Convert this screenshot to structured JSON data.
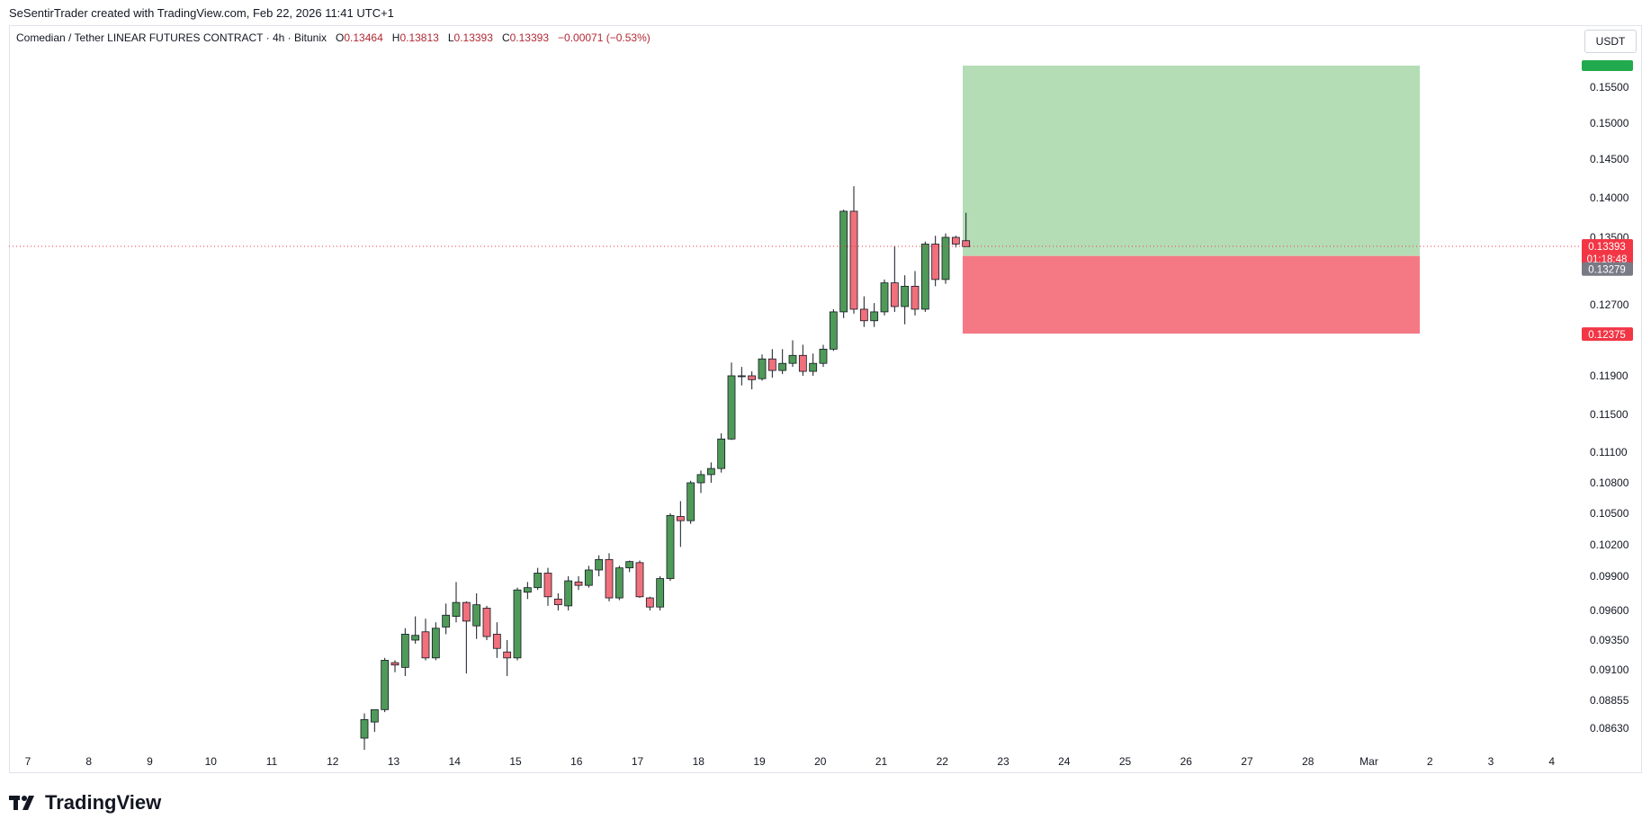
{
  "attribution": "SeSentirTrader created with TradingView.com, Feb 22, 2026 11:41 UTC+1",
  "legend": {
    "symbol": "Comedian / Tether LINEAR FUTURES CONTRACT · 4h · Bitunix",
    "o_label": "O",
    "o": "0.13464",
    "h_label": "H",
    "h": "0.13813",
    "l_label": "L",
    "l": "0.13393",
    "c_label": "C",
    "c": "0.13393",
    "change": "−0.00071 (−0.53%)"
  },
  "currency": "USDT",
  "brand": "TradingView",
  "colors": {
    "up": "#4f9a58",
    "down": "#f0707c",
    "target_zone": "#b4ddb6",
    "stop_zone": "#f57985",
    "badge_red": "#f23645",
    "badge_grey": "#787b86",
    "badge_green": "#22ab4e"
  },
  "chart_data": {
    "type": "candlestick",
    "interval": "4h",
    "x_ticks": [
      "7",
      "8",
      "9",
      "10",
      "11",
      "12",
      "13",
      "14",
      "15",
      "16",
      "17",
      "18",
      "19",
      "20",
      "21",
      "22",
      "23",
      "24",
      "25",
      "26",
      "27",
      "28",
      "Mar",
      "2",
      "3",
      "4"
    ],
    "y_ticks": [
      "0.15500",
      "0.15000",
      "0.14500",
      "0.14000",
      "0.13500",
      "0.12700",
      "0.11900",
      "0.11500",
      "0.11100",
      "0.10800",
      "0.10500",
      "0.10200",
      "0.09900",
      "0.09600",
      "0.09350",
      "0.09100",
      "0.08855",
      "0.08630"
    ],
    "y_tick_values": [
      0.155,
      0.15,
      0.145,
      0.14,
      0.135,
      0.127,
      0.119,
      0.115,
      0.111,
      0.108,
      0.105,
      0.102,
      0.099,
      0.096,
      0.0935,
      0.091,
      0.08855,
      0.0863
    ],
    "price_labels": {
      "last": "0.13393",
      "countdown": "01:18:48",
      "entry": "0.13279",
      "stop": "0.12375",
      "target": "0.15800"
    },
    "position": {
      "entry": 0.13279,
      "stop": 0.12375,
      "target": 0.158
    },
    "candles": [
      {
        "o": 0.0855,
        "h": 0.0875,
        "l": 0.084,
        "c": 0.087
      },
      {
        "o": 0.0868,
        "h": 0.0878,
        "l": 0.086,
        "c": 0.0878
      },
      {
        "o": 0.0878,
        "h": 0.092,
        "l": 0.0876,
        "c": 0.0918
      },
      {
        "o": 0.0916,
        "h": 0.0918,
        "l": 0.0908,
        "c": 0.0914
      },
      {
        "o": 0.0912,
        "h": 0.0945,
        "l": 0.0905,
        "c": 0.094
      },
      {
        "o": 0.0935,
        "h": 0.0955,
        "l": 0.0932,
        "c": 0.0939
      },
      {
        "o": 0.0942,
        "h": 0.0953,
        "l": 0.0918,
        "c": 0.092
      },
      {
        "o": 0.092,
        "h": 0.095,
        "l": 0.0918,
        "c": 0.0945
      },
      {
        "o": 0.0946,
        "h": 0.0966,
        "l": 0.094,
        "c": 0.0956
      },
      {
        "o": 0.0955,
        "h": 0.0985,
        "l": 0.095,
        "c": 0.0967
      },
      {
        "o": 0.0967,
        "h": 0.0968,
        "l": 0.0907,
        "c": 0.0951
      },
      {
        "o": 0.0947,
        "h": 0.0975,
        "l": 0.0936,
        "c": 0.0965
      },
      {
        "o": 0.0962,
        "h": 0.0964,
        "l": 0.0935,
        "c": 0.0938
      },
      {
        "o": 0.094,
        "h": 0.095,
        "l": 0.092,
        "c": 0.0928
      },
      {
        "o": 0.0925,
        "h": 0.0935,
        "l": 0.0905,
        "c": 0.092
      },
      {
        "o": 0.092,
        "h": 0.098,
        "l": 0.0918,
        "c": 0.0978
      },
      {
        "o": 0.0976,
        "h": 0.0985,
        "l": 0.097,
        "c": 0.098
      },
      {
        "o": 0.098,
        "h": 0.0998,
        "l": 0.0978,
        "c": 0.0993
      },
      {
        "o": 0.0993,
        "h": 0.0998,
        "l": 0.0964,
        "c": 0.0972
      },
      {
        "o": 0.097,
        "h": 0.0975,
        "l": 0.096,
        "c": 0.0965
      },
      {
        "o": 0.0964,
        "h": 0.099,
        "l": 0.096,
        "c": 0.0986
      },
      {
        "o": 0.0985,
        "h": 0.099,
        "l": 0.0978,
        "c": 0.0982
      },
      {
        "o": 0.0982,
        "h": 0.1,
        "l": 0.098,
        "c": 0.0996
      },
      {
        "o": 0.0996,
        "h": 0.101,
        "l": 0.099,
        "c": 0.1006
      },
      {
        "o": 0.1006,
        "h": 0.1012,
        "l": 0.0968,
        "c": 0.0971
      },
      {
        "o": 0.0971,
        "h": 0.1,
        "l": 0.0969,
        "c": 0.0998
      },
      {
        "o": 0.0998,
        "h": 0.1005,
        "l": 0.0994,
        "c": 0.1004
      },
      {
        "o": 0.1003,
        "h": 0.1005,
        "l": 0.0971,
        "c": 0.0972
      },
      {
        "o": 0.0971,
        "h": 0.0972,
        "l": 0.096,
        "c": 0.0963
      },
      {
        "o": 0.0963,
        "h": 0.099,
        "l": 0.096,
        "c": 0.0988
      },
      {
        "o": 0.0988,
        "h": 0.105,
        "l": 0.0986,
        "c": 0.1048
      },
      {
        "o": 0.1047,
        "h": 0.1062,
        "l": 0.1018,
        "c": 0.1043
      },
      {
        "o": 0.1043,
        "h": 0.1082,
        "l": 0.104,
        "c": 0.108
      },
      {
        "o": 0.108,
        "h": 0.1092,
        "l": 0.107,
        "c": 0.1088
      },
      {
        "o": 0.1088,
        "h": 0.11,
        "l": 0.108,
        "c": 0.1094
      },
      {
        "o": 0.1094,
        "h": 0.113,
        "l": 0.109,
        "c": 0.1124
      },
      {
        "o": 0.1124,
        "h": 0.1205,
        "l": 0.1123,
        "c": 0.119
      },
      {
        "o": 0.119,
        "h": 0.12,
        "l": 0.118,
        "c": 0.119
      },
      {
        "o": 0.119,
        "h": 0.1195,
        "l": 0.1176,
        "c": 0.1186
      },
      {
        "o": 0.1187,
        "h": 0.1214,
        "l": 0.1185,
        "c": 0.1209
      },
      {
        "o": 0.1209,
        "h": 0.122,
        "l": 0.1188,
        "c": 0.1196
      },
      {
        "o": 0.1196,
        "h": 0.122,
        "l": 0.1192,
        "c": 0.1204
      },
      {
        "o": 0.1204,
        "h": 0.123,
        "l": 0.12,
        "c": 0.1213
      },
      {
        "o": 0.1213,
        "h": 0.1225,
        "l": 0.119,
        "c": 0.1195
      },
      {
        "o": 0.1195,
        "h": 0.1215,
        "l": 0.119,
        "c": 0.1204
      },
      {
        "o": 0.1204,
        "h": 0.1225,
        "l": 0.12,
        "c": 0.122
      },
      {
        "o": 0.122,
        "h": 0.1265,
        "l": 0.1218,
        "c": 0.1262
      },
      {
        "o": 0.1262,
        "h": 0.1385,
        "l": 0.1255,
        "c": 0.1383
      },
      {
        "o": 0.1383,
        "h": 0.1415,
        "l": 0.126,
        "c": 0.1265
      },
      {
        "o": 0.1265,
        "h": 0.128,
        "l": 0.1245,
        "c": 0.1252
      },
      {
        "o": 0.1252,
        "h": 0.1272,
        "l": 0.1245,
        "c": 0.1262
      },
      {
        "o": 0.1262,
        "h": 0.13,
        "l": 0.1258,
        "c": 0.1296
      },
      {
        "o": 0.1296,
        "h": 0.134,
        "l": 0.1262,
        "c": 0.1268
      },
      {
        "o": 0.1268,
        "h": 0.1305,
        "l": 0.1248,
        "c": 0.1292
      },
      {
        "o": 0.1292,
        "h": 0.131,
        "l": 0.1258,
        "c": 0.1265
      },
      {
        "o": 0.1265,
        "h": 0.1345,
        "l": 0.1262,
        "c": 0.1342
      },
      {
        "o": 0.1342,
        "h": 0.1352,
        "l": 0.1292,
        "c": 0.13
      },
      {
        "o": 0.13,
        "h": 0.1355,
        "l": 0.1295,
        "c": 0.135
      },
      {
        "o": 0.135,
        "h": 0.1352,
        "l": 0.1338,
        "c": 0.1342
      },
      {
        "o": 0.1346,
        "h": 0.1381,
        "l": 0.1339,
        "c": 0.1339
      }
    ]
  }
}
